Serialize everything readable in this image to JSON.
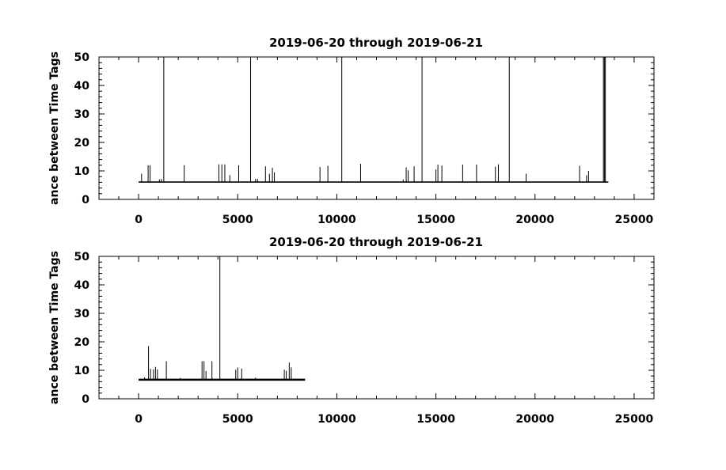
{
  "chart_data": [
    {
      "type": "line",
      "title": "2019-06-20 through 2019-06-21",
      "ylabel": "ance between Time Tags",
      "xlabel": "",
      "xlim": [
        -2000,
        26000
      ],
      "ylim": [
        0,
        50
      ],
      "xticks": [
        0,
        5000,
        10000,
        15000,
        20000,
        25000
      ],
      "yticks": [
        0,
        10,
        20,
        30,
        40,
        50
      ],
      "grid": false,
      "baseline": 6.1,
      "x_extent": [
        0,
        23700
      ],
      "series": [
        {
          "spikes": [
            [
              150,
              9
            ],
            [
              480,
              12
            ],
            [
              580,
              12
            ],
            [
              1050,
              7
            ],
            [
              1150,
              7.2
            ],
            [
              1270,
              50
            ],
            [
              2300,
              12
            ],
            [
              4050,
              12.3
            ],
            [
              4200,
              12.3
            ],
            [
              4350,
              12.3
            ],
            [
              4600,
              8.5
            ],
            [
              5050,
              12
            ],
            [
              5650,
              50
            ],
            [
              5900,
              7.2
            ],
            [
              6000,
              7.2
            ],
            [
              6400,
              11.6
            ],
            [
              6600,
              9
            ],
            [
              6750,
              11.1
            ],
            [
              6850,
              9.5
            ],
            [
              9150,
              11.4
            ],
            [
              9550,
              11.8
            ],
            [
              10250,
              50
            ],
            [
              11200,
              12.5
            ],
            [
              13350,
              7
            ],
            [
              13500,
              11.2
            ],
            [
              13600,
              10.2
            ],
            [
              13900,
              11.6
            ],
            [
              14300,
              50
            ],
            [
              15000,
              10.5
            ],
            [
              15100,
              12.2
            ],
            [
              15300,
              11.9
            ],
            [
              16350,
              12.2
            ],
            [
              17050,
              12.2
            ],
            [
              18000,
              11.5
            ],
            [
              18150,
              12.3
            ],
            [
              18700,
              50
            ],
            [
              19550,
              9
            ],
            [
              22250,
              11.8
            ],
            [
              22600,
              8.5
            ],
            [
              22700,
              10
            ],
            [
              23450,
              50
            ],
            [
              23500,
              50
            ],
            [
              23550,
              50
            ]
          ]
        }
      ]
    },
    {
      "type": "line",
      "title": "2019-06-20 through 2019-06-21",
      "ylabel": "ance between Time Tags",
      "xlabel": "",
      "xlim": [
        -2000,
        26000
      ],
      "ylim": [
        0,
        50
      ],
      "xticks": [
        0,
        5000,
        10000,
        15000,
        20000,
        25000
      ],
      "yticks": [
        0,
        10,
        20,
        30,
        40,
        50
      ],
      "grid": false,
      "baseline": 6.7,
      "x_extent": [
        0,
        8400
      ],
      "series": [
        {
          "spikes": [
            [
              300,
              7.5
            ],
            [
              500,
              18.5
            ],
            [
              600,
              10.5
            ],
            [
              750,
              10.3
            ],
            [
              850,
              11.2
            ],
            [
              950,
              10.3
            ],
            [
              1400,
              13.2
            ],
            [
              2100,
              7.3
            ],
            [
              3200,
              13.2
            ],
            [
              3300,
              13.2
            ],
            [
              3400,
              9.8
            ],
            [
              3700,
              13.2
            ],
            [
              4100,
              50
            ],
            [
              4900,
              10.2
            ],
            [
              5000,
              11
            ],
            [
              5200,
              10.6
            ],
            [
              5900,
              7.4
            ],
            [
              7350,
              10.2
            ],
            [
              7450,
              9.8
            ],
            [
              7600,
              12.7
            ],
            [
              7700,
              11
            ]
          ]
        }
      ]
    }
  ]
}
